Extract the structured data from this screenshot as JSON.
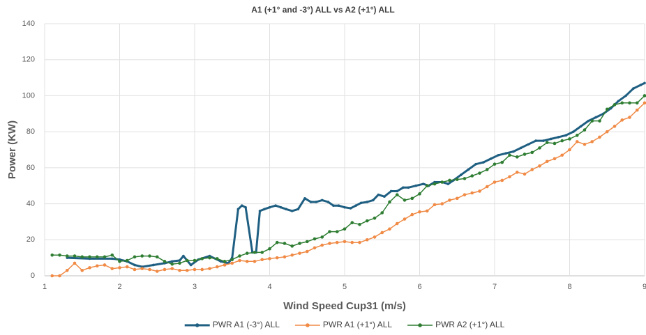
{
  "chart_data": {
    "type": "line",
    "title": "A1 (+1° and -3°) ALL  vs  A2 (+1°) ALL",
    "xlabel": "Wind Speed Cup31 (m/s)",
    "ylabel": "Power (KW)",
    "xlim": [
      1,
      9
    ],
    "xticks": [
      1,
      2,
      3,
      4,
      5,
      6,
      7,
      8,
      9
    ],
    "ylim": [
      0,
      140
    ],
    "yticks": [
      0,
      20,
      40,
      60,
      80,
      100,
      120,
      140
    ],
    "grid": true,
    "legend": "bottom",
    "series": [
      {
        "name": "PWR A1 (-3°)  ALL",
        "color": "#1f5f82",
        "x": [
          1.3,
          1.6,
          1.9,
          2.0,
          2.1,
          2.2,
          2.3,
          2.45,
          2.6,
          2.7,
          2.8,
          2.85,
          2.95,
          3.05,
          3.2,
          3.35,
          3.45,
          3.5,
          3.58,
          3.63,
          3.68,
          3.77,
          3.82,
          3.87,
          3.93,
          4.0,
          4.08,
          4.15,
          4.22,
          4.3,
          4.38,
          4.47,
          4.55,
          4.62,
          4.7,
          4.78,
          4.85,
          4.92,
          5.0,
          5.08,
          5.15,
          5.22,
          5.3,
          5.38,
          5.45,
          5.53,
          5.62,
          5.7,
          5.78,
          5.85,
          5.95,
          6.05,
          6.12,
          6.2,
          6.3,
          6.38,
          6.45,
          6.55,
          6.65,
          6.75,
          6.85,
          6.95,
          7.05,
          7.15,
          7.25,
          7.35,
          7.45,
          7.55,
          7.65,
          7.75,
          7.85,
          7.95,
          8.05,
          8.15,
          8.25,
          8.35,
          8.45,
          8.55,
          8.65,
          8.75,
          8.85,
          8.95,
          9.0
        ],
        "values": [
          10,
          9.5,
          9.5,
          9,
          8,
          6,
          5,
          6,
          7,
          8,
          8.5,
          11,
          6,
          9,
          11,
          8,
          7,
          10,
          37,
          39,
          38,
          13,
          13,
          36,
          37,
          38,
          39,
          38,
          37,
          36,
          37,
          43,
          41,
          41,
          42,
          41,
          39,
          39,
          38,
          37.5,
          39,
          40.5,
          41,
          42,
          45,
          44,
          47,
          47,
          49,
          49,
          50,
          51,
          50,
          52,
          52,
          51,
          53,
          56,
          59,
          62,
          63,
          65,
          67,
          68,
          69,
          71,
          73,
          75,
          75,
          76,
          77,
          78,
          80,
          83,
          86,
          88,
          90,
          93,
          97,
          100,
          104,
          106,
          107
        ]
      },
      {
        "name": "PWR A1 (+1°) ALL",
        "color": "#f08a45",
        "x": [
          1.1,
          1.2,
          1.3,
          1.4,
          1.5,
          1.6,
          1.7,
          1.8,
          1.9,
          2.0,
          2.1,
          2.2,
          2.3,
          2.4,
          2.5,
          2.6,
          2.7,
          2.8,
          2.9,
          3.0,
          3.1,
          3.2,
          3.3,
          3.4,
          3.5,
          3.6,
          3.7,
          3.8,
          3.9,
          4.0,
          4.1,
          4.2,
          4.3,
          4.4,
          4.5,
          4.6,
          4.7,
          4.8,
          4.9,
          5.0,
          5.1,
          5.2,
          5.3,
          5.4,
          5.5,
          5.6,
          5.7,
          5.8,
          5.9,
          6.0,
          6.1,
          6.2,
          6.3,
          6.4,
          6.5,
          6.6,
          6.7,
          6.8,
          6.9,
          7.0,
          7.1,
          7.2,
          7.3,
          7.4,
          7.5,
          7.6,
          7.7,
          7.8,
          7.9,
          8.0,
          8.1,
          8.2,
          8.3,
          8.4,
          8.5,
          8.6,
          8.7,
          8.8,
          8.9,
          9.0
        ],
        "values": [
          0,
          0,
          3,
          7,
          3,
          4.5,
          5.5,
          6,
          4,
          4.5,
          5,
          3.5,
          4,
          3.5,
          2.5,
          3.5,
          4,
          3,
          3,
          3.5,
          3.5,
          4,
          5,
          6,
          7,
          8.5,
          8,
          8,
          9,
          9.5,
          10,
          10.5,
          11.5,
          12.5,
          13.5,
          15.5,
          17,
          18,
          18.5,
          19,
          18.5,
          18.5,
          20,
          21.5,
          24,
          26,
          29,
          31.5,
          34,
          35.5,
          36,
          39.5,
          40,
          42,
          43,
          45,
          46,
          47,
          49.5,
          52,
          53,
          55,
          57.5,
          56.5,
          59,
          61,
          63.5,
          65,
          67,
          70,
          74.5,
          73,
          74.5,
          77,
          80,
          83,
          86.5,
          88,
          92,
          96
        ]
      },
      {
        "name": "PWR A2 (+1°)  ALL",
        "color": "#2e7d32",
        "x": [
          1.1,
          1.2,
          1.3,
          1.4,
          1.5,
          1.6,
          1.7,
          1.8,
          1.9,
          2.0,
          2.1,
          2.2,
          2.3,
          2.4,
          2.5,
          2.6,
          2.7,
          2.8,
          2.9,
          3.0,
          3.1,
          3.2,
          3.3,
          3.4,
          3.5,
          3.6,
          3.7,
          3.8,
          3.9,
          4.0,
          4.1,
          4.2,
          4.3,
          4.4,
          4.5,
          4.6,
          4.7,
          4.8,
          4.9,
          5.0,
          5.1,
          5.2,
          5.3,
          5.4,
          5.5,
          5.6,
          5.7,
          5.8,
          5.9,
          6.0,
          6.1,
          6.2,
          6.3,
          6.4,
          6.5,
          6.6,
          6.7,
          6.8,
          6.9,
          7.0,
          7.1,
          7.2,
          7.3,
          7.4,
          7.5,
          7.6,
          7.7,
          7.8,
          7.9,
          8.0,
          8.1,
          8.2,
          8.3,
          8.4,
          8.5,
          8.6,
          8.7,
          8.8,
          8.9,
          9.0
        ],
        "values": [
          11.5,
          11.5,
          11,
          11,
          10.5,
          10.5,
          10.5,
          10.5,
          11.5,
          8,
          8.5,
          10.5,
          11,
          11,
          10.5,
          8,
          6.5,
          7,
          8.5,
          8.5,
          9.5,
          10,
          9.5,
          8,
          9,
          11,
          12.5,
          13,
          13,
          15,
          18.5,
          18,
          16.5,
          18,
          19,
          20.5,
          21.5,
          24.5,
          24.5,
          26,
          29.5,
          28.5,
          30.5,
          32,
          35,
          41,
          45,
          42,
          43,
          45.5,
          50,
          51,
          52,
          53,
          53.5,
          54,
          55.5,
          57,
          59,
          62,
          63,
          67,
          66,
          67.5,
          68.5,
          71,
          74,
          73.5,
          75,
          76,
          78,
          81,
          86,
          86,
          92.5,
          95,
          96,
          96,
          96,
          100
        ]
      }
    ]
  }
}
